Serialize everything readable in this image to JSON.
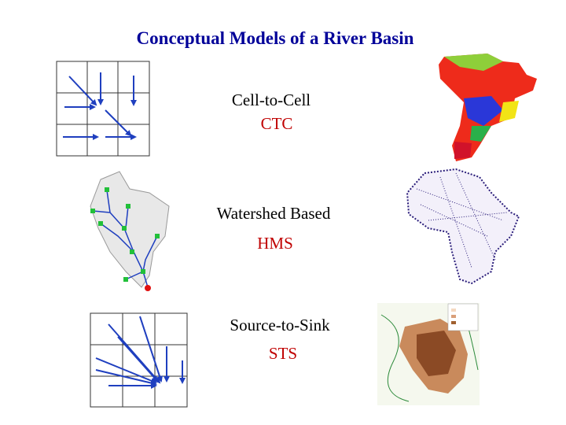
{
  "title": "Conceptual Models of a River Basin",
  "rows": [
    {
      "name": "Cell-to-Cell",
      "abbr": "CTC"
    },
    {
      "name": "Watershed Based",
      "abbr": "HMS"
    },
    {
      "name": "Source-to-Sink",
      "abbr": "STS"
    }
  ]
}
